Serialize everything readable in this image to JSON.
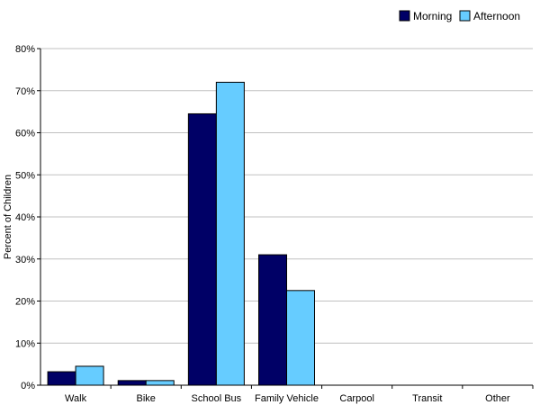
{
  "chart_data": {
    "type": "bar",
    "categories": [
      "Walk",
      "Bike",
      "School Bus",
      "Family Vehicle",
      "Carpool",
      "Transit",
      "Other"
    ],
    "series": [
      {
        "name": "Morning",
        "color": "#000066",
        "values": [
          3.2,
          1.1,
          64.5,
          31.0,
          0,
          0,
          0
        ]
      },
      {
        "name": "Afternoon",
        "color": "#66CCFF",
        "values": [
          4.5,
          1.1,
          72.0,
          22.5,
          0,
          0,
          0
        ]
      }
    ],
    "ylabel": "Percent of Children",
    "xlabel": "",
    "ylim": [
      0,
      80
    ],
    "ytick_step": 10,
    "ytick_suffix": "%",
    "grid": true,
    "legend_position": "top-right"
  }
}
